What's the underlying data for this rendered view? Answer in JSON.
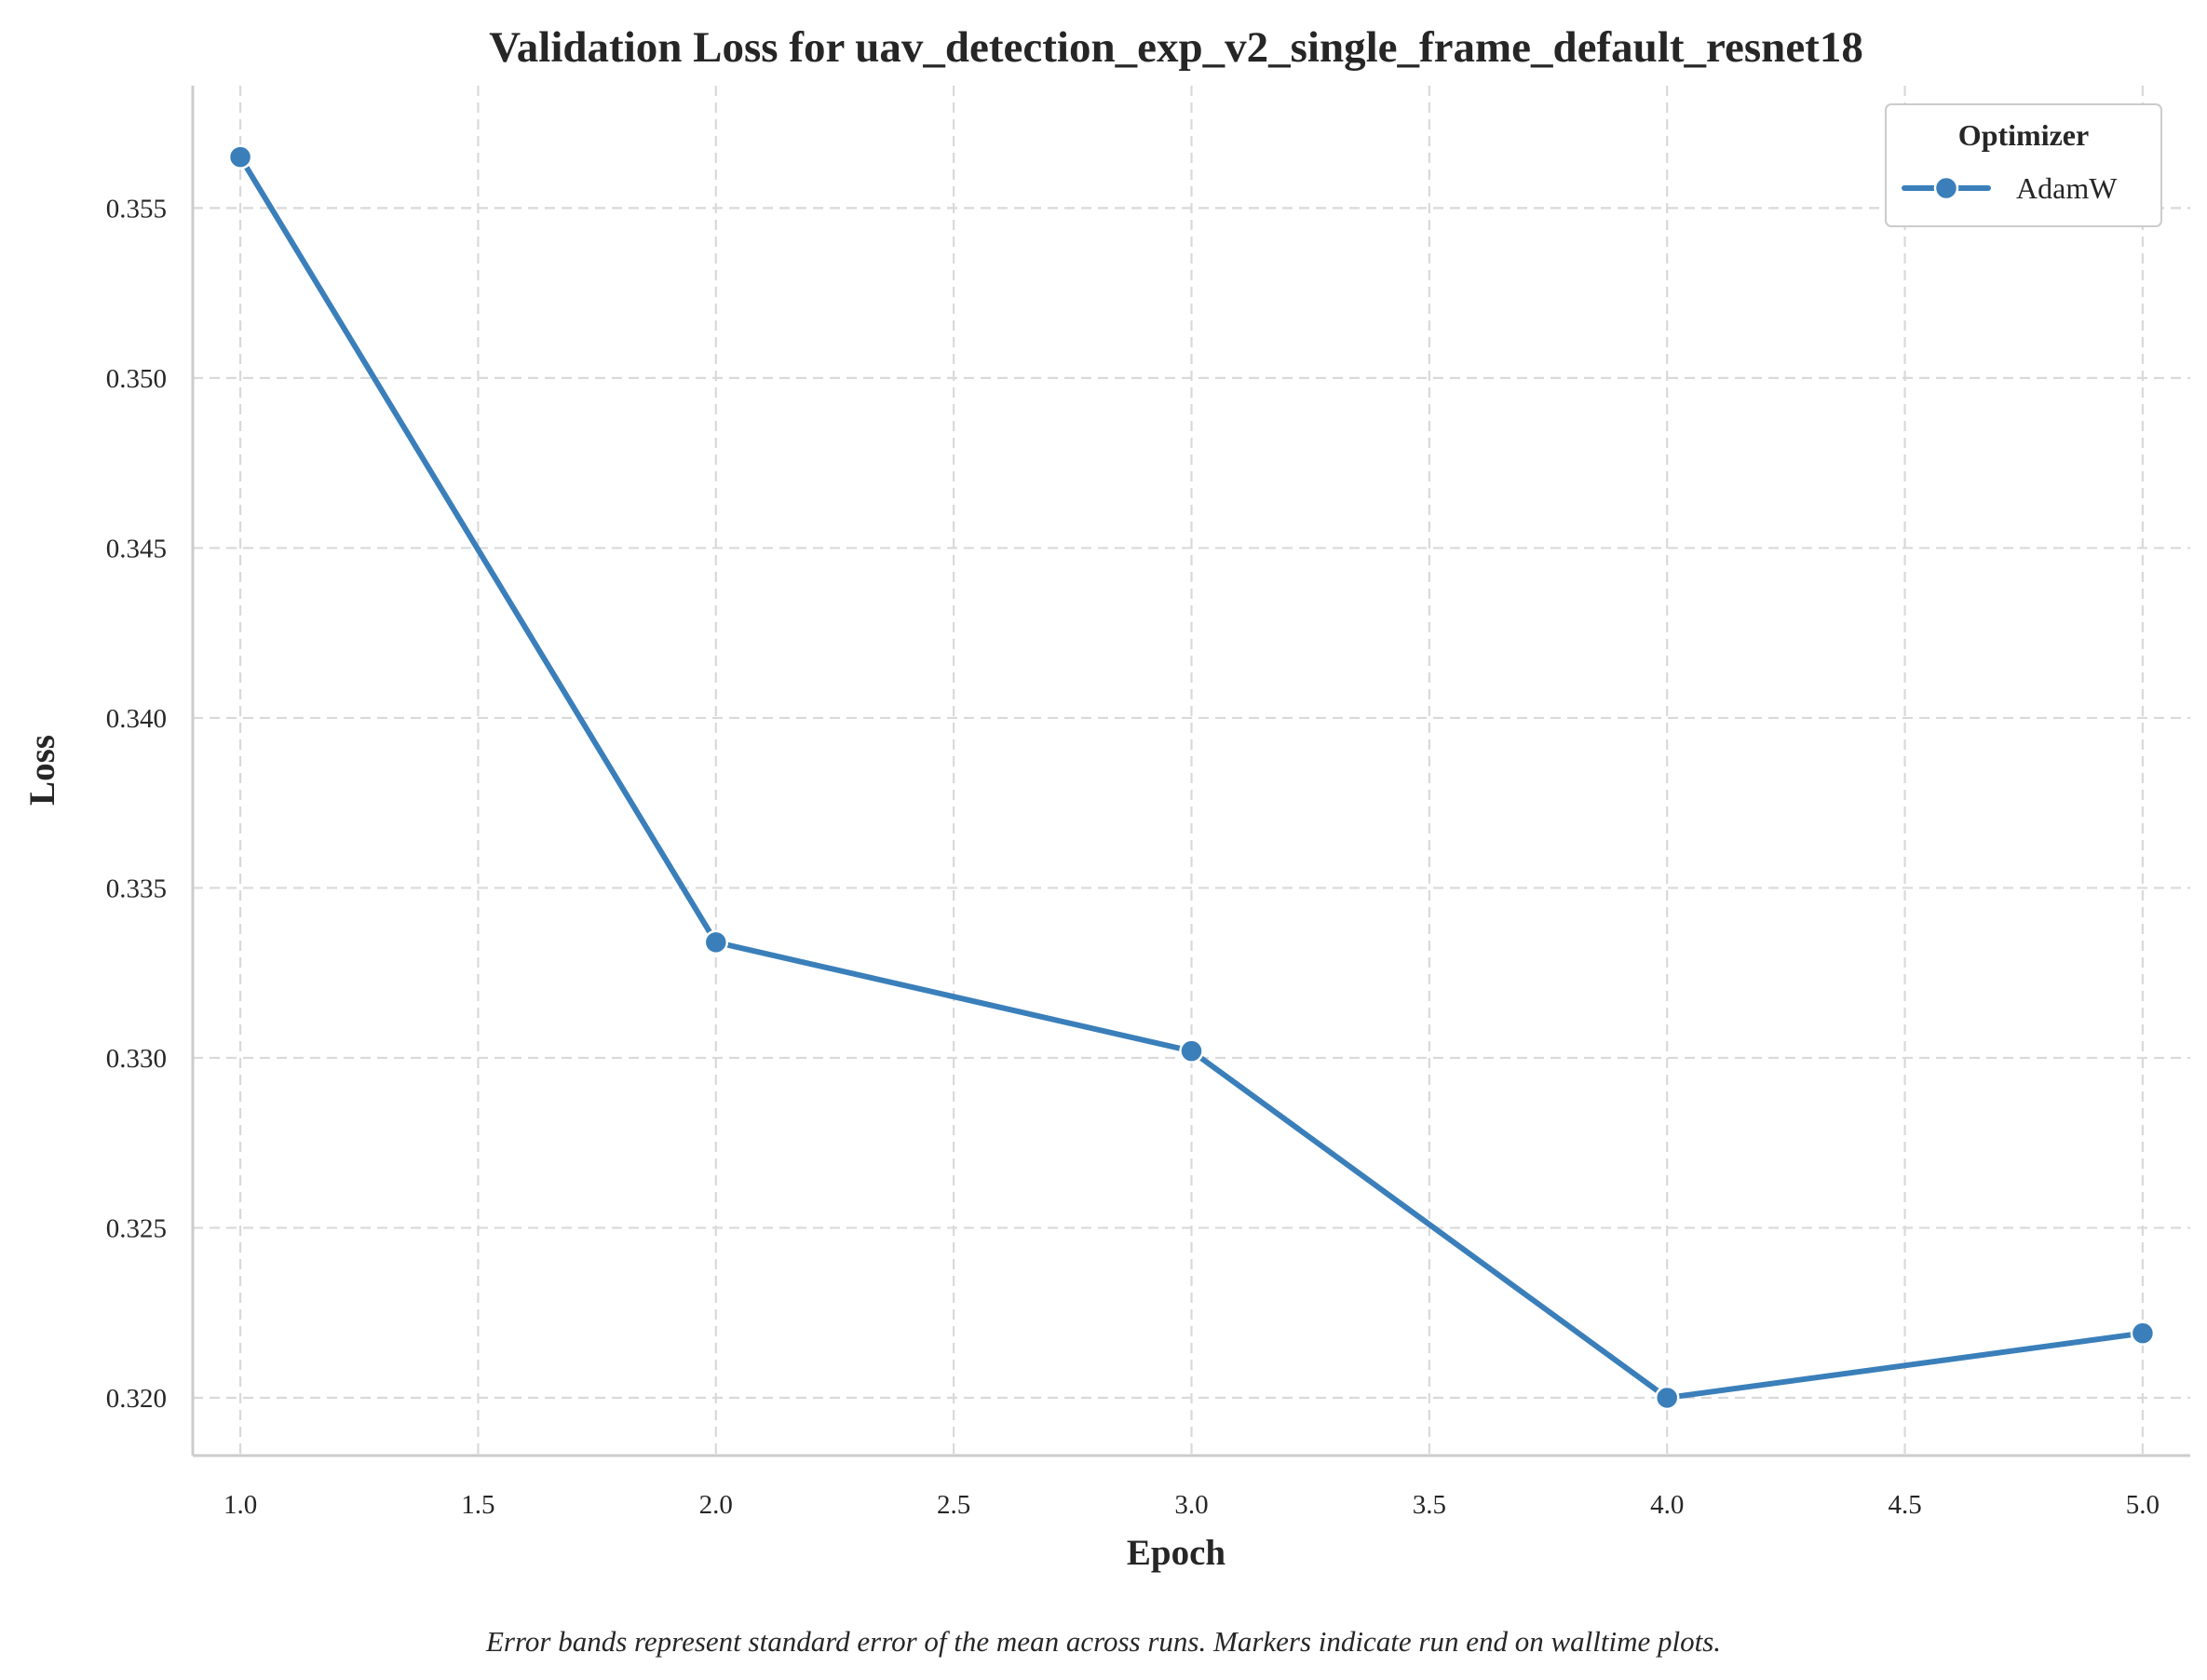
{
  "chart_data": {
    "type": "line",
    "title": "Validation Loss for uav_detection_exp_v2_single_frame_default_resnet18",
    "xlabel": "Epoch",
    "ylabel": "Loss",
    "xlim": [
      0.9,
      5.1
    ],
    "ylim": [
      0.3183,
      0.3586
    ],
    "xticks": [
      1.0,
      1.5,
      2.0,
      2.5,
      3.0,
      3.5,
      4.0,
      4.5,
      5.0
    ],
    "xtick_labels": [
      "1.0",
      "1.5",
      "2.0",
      "2.5",
      "3.0",
      "3.5",
      "4.0",
      "4.5",
      "5.0"
    ],
    "yticks": [
      0.32,
      0.325,
      0.33,
      0.335,
      0.34,
      0.345,
      0.35,
      0.355
    ],
    "ytick_labels": [
      "0.320",
      "0.325",
      "0.330",
      "0.335",
      "0.340",
      "0.345",
      "0.350",
      "0.355"
    ],
    "grid": true,
    "legend": {
      "title": "Optimizer",
      "placement": "top-right"
    },
    "series": [
      {
        "name": "AdamW",
        "color": "#3a7fba",
        "x": [
          1.0,
          2.0,
          3.0,
          4.0,
          5.0
        ],
        "y": [
          0.3565,
          0.3334,
          0.3302,
          0.32,
          0.3219
        ]
      }
    ],
    "caption": "Error bands represent standard error of the mean across runs. Markers indicate run end on walltime plots."
  }
}
